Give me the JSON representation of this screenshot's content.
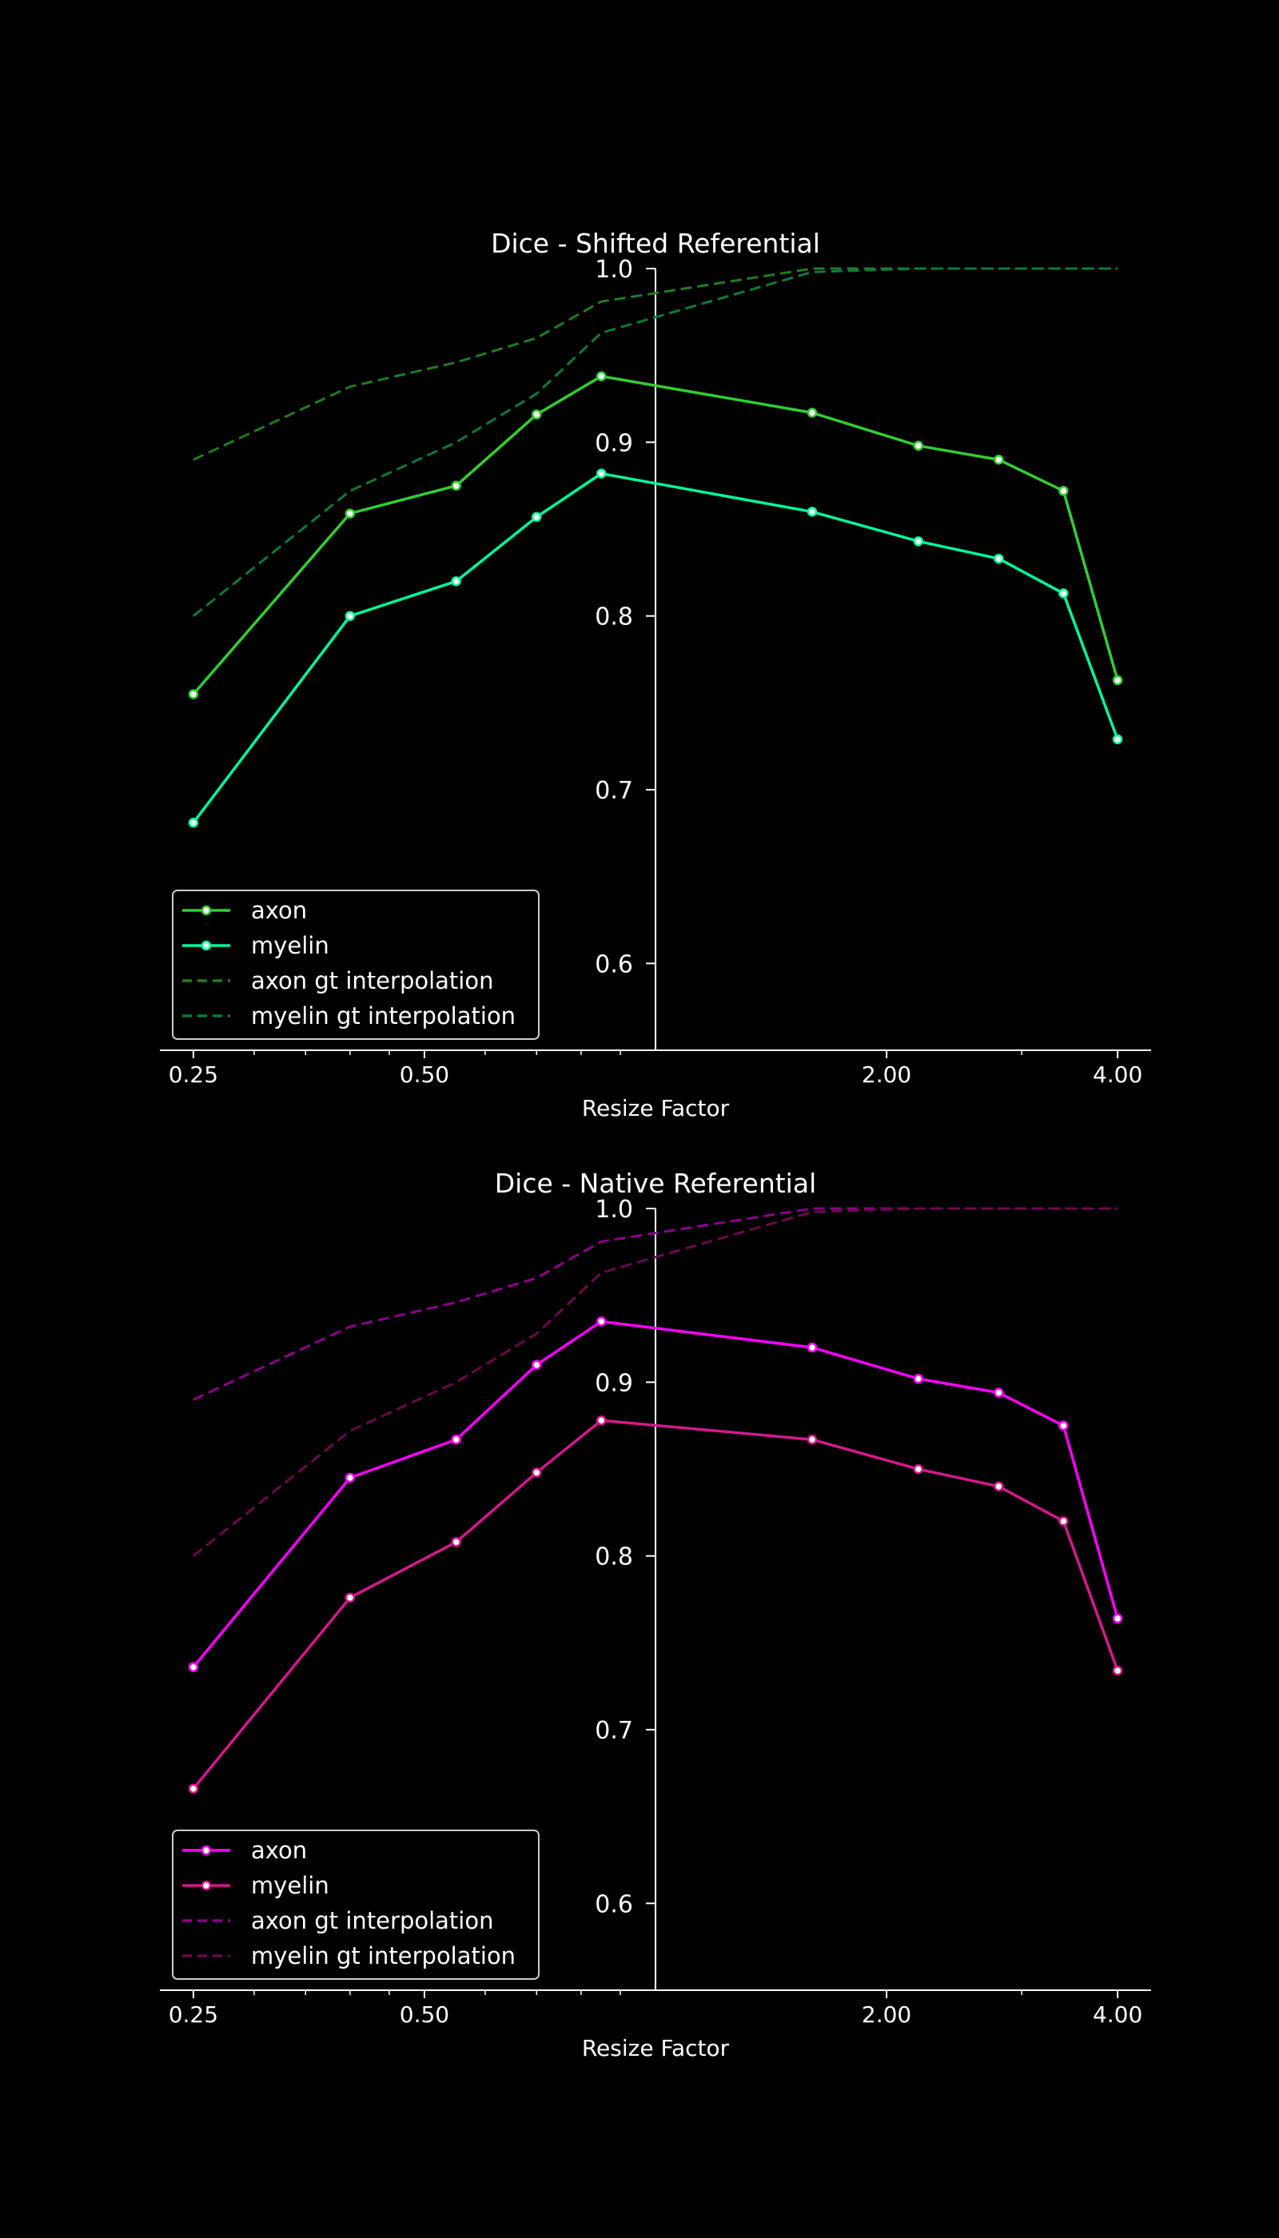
{
  "figure": {
    "background": "#000000",
    "foreground": "#ffffff"
  },
  "chart_data": [
    {
      "type": "line",
      "title": "Dice - Shifted Referential",
      "xlabel": "Resize Factor",
      "ylabel": "",
      "xscale": "log2",
      "xlim": [
        0.2261,
        4.4225
      ],
      "ylim": [
        0.55,
        1.0
      ],
      "x_ticks": [
        0.25,
        0.5,
        2.0,
        4.0
      ],
      "x_tick_labels": [
        "0.25",
        "0.50",
        "2.00",
        "4.00"
      ],
      "y_ticks": [
        0.6,
        0.7,
        0.8,
        0.9,
        1.0
      ],
      "y_tick_labels": [
        "0.6",
        "0.7",
        "0.8",
        "0.9",
        "1.0"
      ],
      "y_axis_at_x": 1.0,
      "grid": false,
      "legend_position": "lower-left",
      "x": [
        0.25,
        0.4,
        0.55,
        0.7,
        0.85,
        1.6,
        2.2,
        2.8,
        3.4,
        4.0
      ],
      "series": [
        {
          "name": "axon",
          "style": "solid-marker",
          "color": "#32cd32",
          "values": [
            0.755,
            0.859,
            0.875,
            0.916,
            0.938,
            0.917,
            0.898,
            0.89,
            0.872,
            0.763
          ]
        },
        {
          "name": "myelin",
          "style": "solid-marker",
          "color": "#00fa9a",
          "values": [
            0.681,
            0.8,
            0.82,
            0.857,
            0.882,
            0.86,
            0.843,
            0.833,
            0.813,
            0.729
          ]
        },
        {
          "name": "axon gt interpolation",
          "style": "dashed",
          "color": "#237a23",
          "values": [
            0.89,
            0.932,
            0.946,
            0.96,
            0.981,
            1.0,
            1.0,
            1.0,
            1.0,
            1.0
          ]
        },
        {
          "name": "myelin gt interpolation",
          "style": "dashed",
          "color": "#0c7a3c",
          "values": [
            0.8,
            0.872,
            0.9,
            0.928,
            0.963,
            0.998,
            1.0,
            1.0,
            1.0,
            1.0
          ]
        }
      ]
    },
    {
      "type": "line",
      "title": "Dice - Native Referential",
      "xlabel": "Resize Factor",
      "ylabel": "",
      "xscale": "log2",
      "xlim": [
        0.2261,
        4.4225
      ],
      "ylim": [
        0.55,
        1.0
      ],
      "x_ticks": [
        0.25,
        0.5,
        2.0,
        4.0
      ],
      "x_tick_labels": [
        "0.25",
        "0.50",
        "2.00",
        "4.00"
      ],
      "y_ticks": [
        0.6,
        0.7,
        0.8,
        0.9,
        1.0
      ],
      "y_tick_labels": [
        "0.6",
        "0.7",
        "0.8",
        "0.9",
        "1.0"
      ],
      "y_axis_at_x": 1.0,
      "grid": false,
      "legend_position": "lower-left",
      "x": [
        0.25,
        0.4,
        0.55,
        0.7,
        0.85,
        1.6,
        2.2,
        2.8,
        3.4,
        4.0
      ],
      "series": [
        {
          "name": "axon",
          "style": "solid-marker",
          "color": "#ff00ff",
          "values": [
            0.736,
            0.845,
            0.867,
            0.91,
            0.935,
            0.92,
            0.902,
            0.894,
            0.875,
            0.764
          ]
        },
        {
          "name": "myelin",
          "style": "solid-marker",
          "color": "#d3198b",
          "values": [
            0.666,
            0.776,
            0.808,
            0.848,
            0.878,
            0.867,
            0.85,
            0.84,
            0.82,
            0.734
          ]
        },
        {
          "name": "axon gt interpolation",
          "style": "dashed",
          "color": "#8b008b",
          "values": [
            0.89,
            0.932,
            0.946,
            0.96,
            0.981,
            1.0,
            1.0,
            1.0,
            1.0,
            1.0
          ]
        },
        {
          "name": "myelin gt interpolation",
          "style": "dashed",
          "color": "#6a0a4a",
          "values": [
            0.8,
            0.872,
            0.9,
            0.928,
            0.963,
            0.998,
            1.0,
            1.0,
            1.0,
            1.0
          ]
        }
      ]
    }
  ]
}
